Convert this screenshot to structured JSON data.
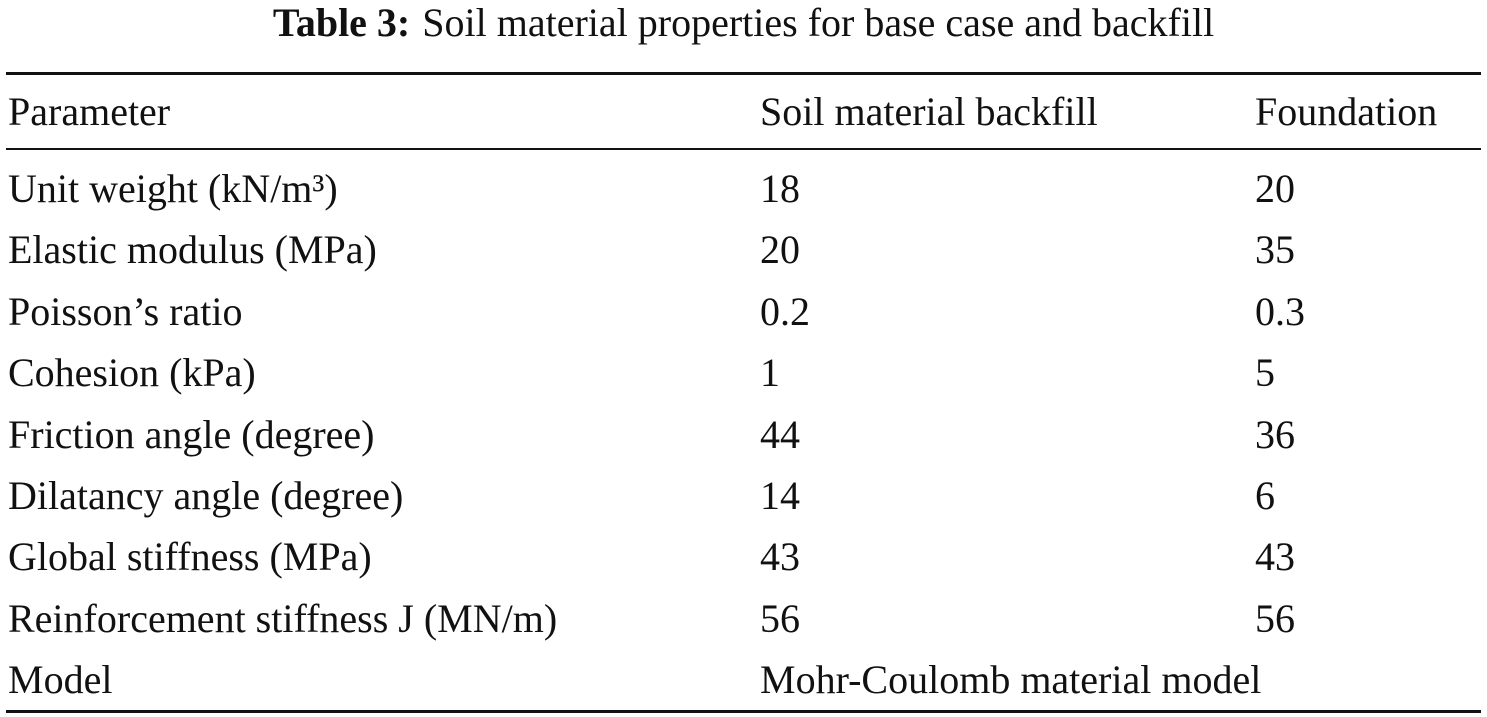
{
  "caption": {
    "label": "Table 3:",
    "text": "Soil material properties for base case and backfill"
  },
  "table": {
    "header": [
      "Parameter",
      "Soil material backfill",
      "Foundation"
    ],
    "rows": [
      [
        "Unit weight (kN/m³)",
        "18",
        "20"
      ],
      [
        "Elastic modulus (MPa)",
        "20",
        "35"
      ],
      [
        "Poisson’s ratio",
        "0.2",
        "0.3"
      ],
      [
        "Cohesion (kPa)",
        "1",
        "5"
      ],
      [
        "Friction angle (degree)",
        "44",
        "36"
      ],
      [
        "Dilatancy angle (degree)",
        "14",
        "6"
      ],
      [
        "Global stiffness (MPa)",
        "43",
        "43"
      ],
      [
        "Reinforcement stiffness J (MN/m)",
        "56",
        "56"
      ],
      [
        "Model",
        "Mohr-Coulomb material model"
      ]
    ]
  }
}
